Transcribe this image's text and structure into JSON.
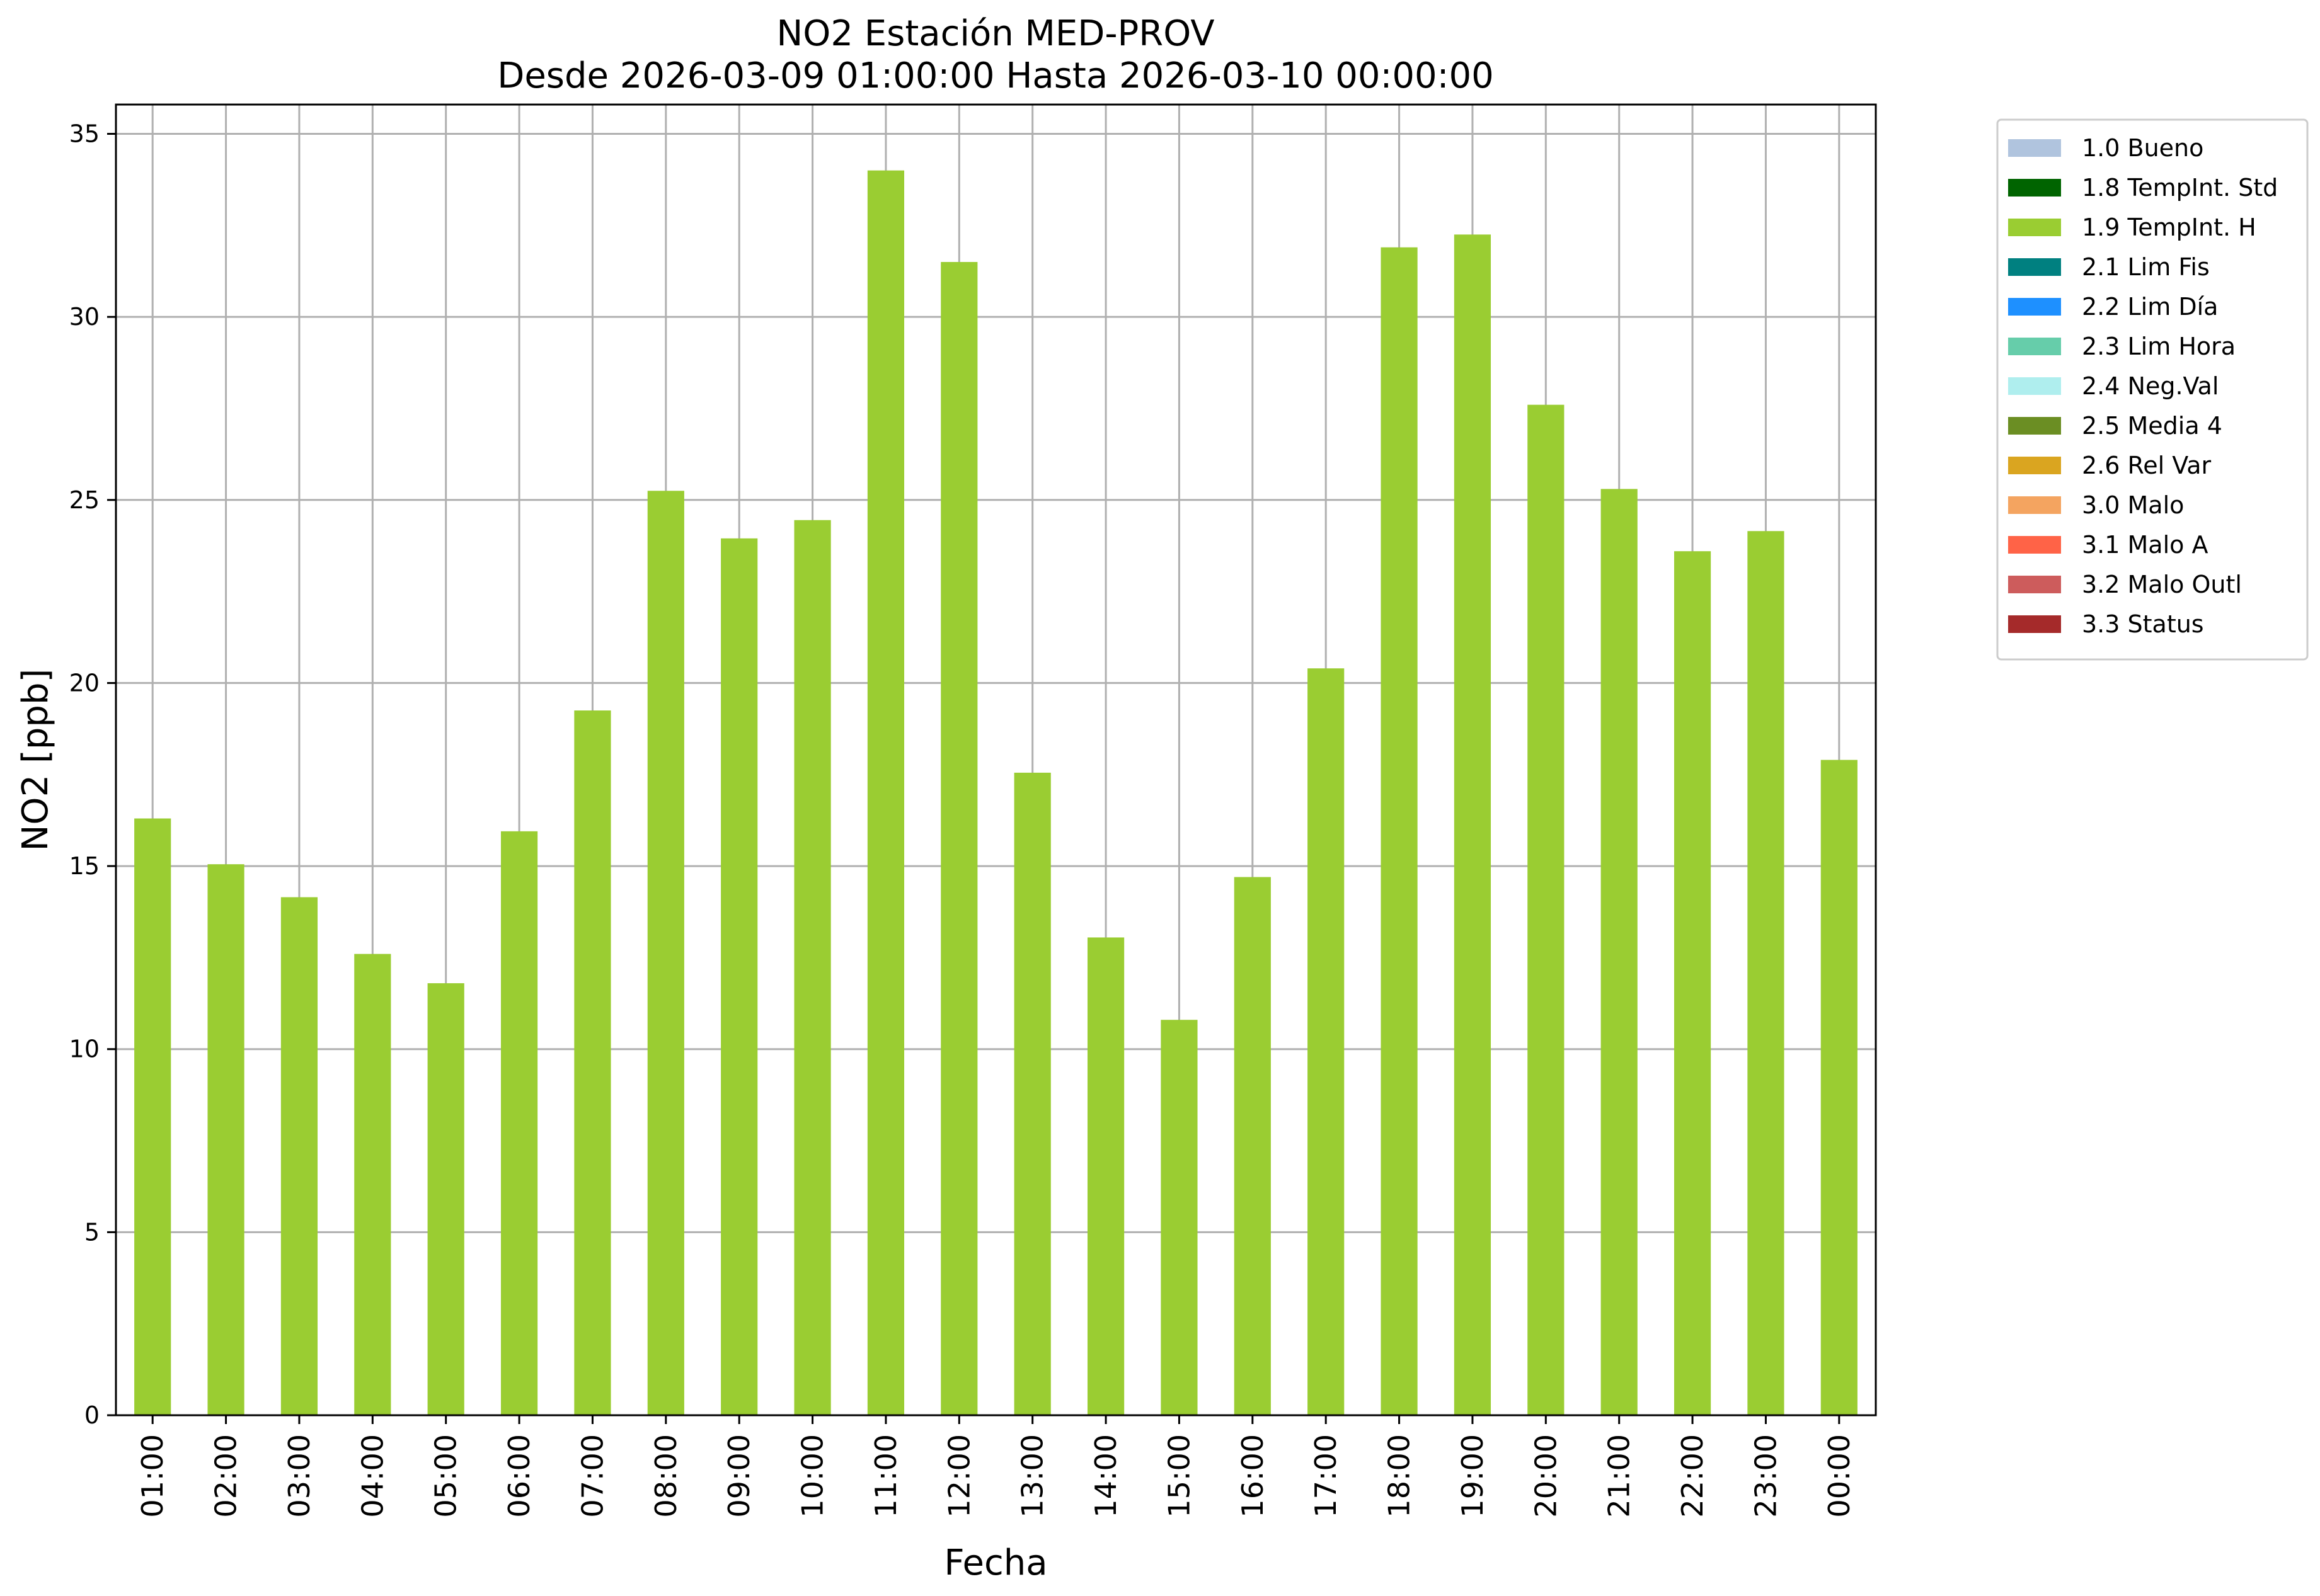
{
  "chart_data": {
    "type": "bar",
    "title": "NO2 Estación MED-PROV",
    "subtitle": "Desde 2026-03-09 01:00:00 Hasta 2026-03-10 00:00:00",
    "xlabel": "Fecha",
    "ylabel": "NO2 [ppb]",
    "ylim": [
      0,
      35.8
    ],
    "yticks": [
      0,
      5,
      10,
      15,
      20,
      25,
      30,
      35
    ],
    "grid": true,
    "legend_position": "outside-right",
    "categories": [
      "01:00",
      "02:00",
      "03:00",
      "04:00",
      "05:00",
      "06:00",
      "07:00",
      "08:00",
      "09:00",
      "10:00",
      "11:00",
      "12:00",
      "13:00",
      "14:00",
      "15:00",
      "16:00",
      "17:00",
      "18:00",
      "19:00",
      "20:00",
      "21:00",
      "22:00",
      "23:00",
      "00:00"
    ],
    "series": [
      {
        "name": "1.0 Bueno",
        "color": "#b0c4de",
        "values": [
          0,
          0,
          0,
          0,
          0,
          0,
          0,
          0,
          0,
          0,
          0,
          0,
          0,
          0,
          0,
          0,
          0,
          0,
          0,
          0,
          0,
          0,
          0,
          0
        ]
      },
      {
        "name": "1.8 TempInt. Std",
        "color": "#006400",
        "values": [
          0,
          0,
          0,
          0,
          0,
          0,
          0,
          0,
          0,
          0,
          0,
          0,
          0,
          0,
          0,
          0,
          0,
          0,
          0,
          0,
          0,
          0,
          0,
          0
        ]
      },
      {
        "name": "1.9 TempInt. H",
        "color": "#9acd32",
        "values": [
          16.3,
          15.05,
          14.15,
          12.6,
          11.8,
          15.95,
          19.25,
          25.25,
          23.95,
          24.45,
          34.0,
          31.5,
          17.55,
          13.05,
          10.8,
          14.7,
          20.4,
          31.9,
          32.25,
          27.6,
          25.3,
          23.6,
          24.15,
          17.9
        ]
      },
      {
        "name": "2.1 Lim Fis",
        "color": "#008080",
        "values": [
          0,
          0,
          0,
          0,
          0,
          0,
          0,
          0,
          0,
          0,
          0,
          0,
          0,
          0,
          0,
          0,
          0,
          0,
          0,
          0,
          0,
          0,
          0,
          0
        ]
      },
      {
        "name": "2.2 Lim Día",
        "color": "#1e90ff",
        "values": [
          0,
          0,
          0,
          0,
          0,
          0,
          0,
          0,
          0,
          0,
          0,
          0,
          0,
          0,
          0,
          0,
          0,
          0,
          0,
          0,
          0,
          0,
          0,
          0
        ]
      },
      {
        "name": "2.3 Lim Hora",
        "color": "#66cdaa",
        "values": [
          0,
          0,
          0,
          0,
          0,
          0,
          0,
          0,
          0,
          0,
          0,
          0,
          0,
          0,
          0,
          0,
          0,
          0,
          0,
          0,
          0,
          0,
          0,
          0
        ]
      },
      {
        "name": "2.4 Neg.Val",
        "color": "#afeeee",
        "values": [
          0,
          0,
          0,
          0,
          0,
          0,
          0,
          0,
          0,
          0,
          0,
          0,
          0,
          0,
          0,
          0,
          0,
          0,
          0,
          0,
          0,
          0,
          0,
          0
        ]
      },
      {
        "name": "2.5 Media 4",
        "color": "#6b8e23",
        "values": [
          0,
          0,
          0,
          0,
          0,
          0,
          0,
          0,
          0,
          0,
          0,
          0,
          0,
          0,
          0,
          0,
          0,
          0,
          0,
          0,
          0,
          0,
          0,
          0
        ]
      },
      {
        "name": "2.6 Rel Var",
        "color": "#daa520",
        "values": [
          0,
          0,
          0,
          0,
          0,
          0,
          0,
          0,
          0,
          0,
          0,
          0,
          0,
          0,
          0,
          0,
          0,
          0,
          0,
          0,
          0,
          0,
          0,
          0
        ]
      },
      {
        "name": "3.0 Malo",
        "color": "#f4a460",
        "values": [
          0,
          0,
          0,
          0,
          0,
          0,
          0,
          0,
          0,
          0,
          0,
          0,
          0,
          0,
          0,
          0,
          0,
          0,
          0,
          0,
          0,
          0,
          0,
          0
        ]
      },
      {
        "name": "3.1 Malo A",
        "color": "#ff6347",
        "values": [
          0,
          0,
          0,
          0,
          0,
          0,
          0,
          0,
          0,
          0,
          0,
          0,
          0,
          0,
          0,
          0,
          0,
          0,
          0,
          0,
          0,
          0,
          0,
          0
        ]
      },
      {
        "name": "3.2 Malo Outl",
        "color": "#cd5c5c",
        "values": [
          0,
          0,
          0,
          0,
          0,
          0,
          0,
          0,
          0,
          0,
          0,
          0,
          0,
          0,
          0,
          0,
          0,
          0,
          0,
          0,
          0,
          0,
          0,
          0
        ]
      },
      {
        "name": "3.3 Status",
        "color": "#a52a2a",
        "values": [
          0,
          0,
          0,
          0,
          0,
          0,
          0,
          0,
          0,
          0,
          0,
          0,
          0,
          0,
          0,
          0,
          0,
          0,
          0,
          0,
          0,
          0,
          0,
          0
        ]
      }
    ]
  }
}
